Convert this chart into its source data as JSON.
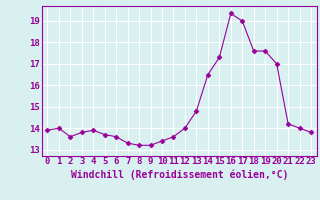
{
  "x": [
    0,
    1,
    2,
    3,
    4,
    5,
    6,
    7,
    8,
    9,
    10,
    11,
    12,
    13,
    14,
    15,
    16,
    17,
    18,
    19,
    20,
    21,
    22,
    23
  ],
  "y": [
    13.9,
    14.0,
    13.6,
    13.8,
    13.9,
    13.7,
    13.6,
    13.3,
    13.2,
    13.2,
    13.4,
    13.6,
    14.0,
    14.8,
    16.5,
    17.3,
    19.35,
    19.0,
    17.6,
    17.6,
    17.0,
    14.2,
    14.0,
    13.8
  ],
  "x_ticks": [
    0,
    1,
    2,
    3,
    4,
    5,
    6,
    7,
    8,
    9,
    10,
    11,
    12,
    13,
    14,
    15,
    16,
    17,
    18,
    19,
    20,
    21,
    22,
    23
  ],
  "y_ticks": [
    13,
    14,
    15,
    16,
    17,
    18,
    19
  ],
  "ylim": [
    12.7,
    19.7
  ],
  "xlim": [
    -0.5,
    23.5
  ],
  "line_color": "#990099",
  "marker": "D",
  "marker_size": 2.5,
  "bg_color": "#d8f0f0",
  "grid_color": "#b8d8d8",
  "xlabel": "Windchill (Refroidissement éolien,°C)",
  "xlabel_color": "#990099",
  "tick_color": "#990099",
  "tick_label_color": "#990099",
  "font_size": 6.5,
  "xlabel_fontsize": 7.0,
  "spine_color": "#990099"
}
